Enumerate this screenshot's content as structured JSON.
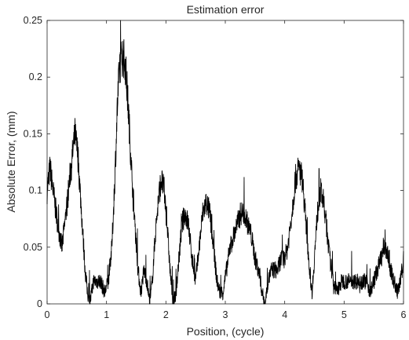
{
  "chart_data": {
    "type": "line",
    "title": "Estimation error",
    "xlabel": "Position, (cycle)",
    "ylabel": "Absolute Error, (mm)",
    "xlim": [
      0,
      6
    ],
    "ylim": [
      0,
      0.25
    ],
    "xticks": [
      "0",
      "1",
      "2",
      "3",
      "4",
      "5",
      "6"
    ],
    "yticks": [
      "0",
      "0.05",
      "0.1",
      "0.15",
      "0.2",
      "0.25"
    ],
    "grid": false,
    "legend": "none",
    "line_color": "#000000",
    "series": [
      {
        "envelope": [
          [
            0.0,
            0.1
          ],
          [
            0.05,
            0.12
          ],
          [
            0.1,
            0.1
          ],
          [
            0.18,
            0.07
          ],
          [
            0.25,
            0.05
          ],
          [
            0.32,
            0.08
          ],
          [
            0.4,
            0.12
          ],
          [
            0.47,
            0.15
          ],
          [
            0.52,
            0.13
          ],
          [
            0.58,
            0.08
          ],
          [
            0.64,
            0.03
          ],
          [
            0.68,
            0.01
          ],
          [
            0.72,
            0.0
          ],
          [
            0.78,
            0.02
          ],
          [
            0.84,
            0.02
          ],
          [
            0.9,
            0.02
          ],
          [
            0.97,
            0.01
          ],
          [
            1.03,
            0.02
          ],
          [
            1.09,
            0.05
          ],
          [
            1.14,
            0.11
          ],
          [
            1.18,
            0.17
          ],
          [
            1.22,
            0.21
          ],
          [
            1.27,
            0.22
          ],
          [
            1.32,
            0.21
          ],
          [
            1.37,
            0.17
          ],
          [
            1.42,
            0.12
          ],
          [
            1.48,
            0.07
          ],
          [
            1.53,
            0.03
          ],
          [
            1.58,
            0.01
          ],
          [
            1.63,
            0.03
          ],
          [
            1.68,
            0.02
          ],
          [
            1.73,
            0.0
          ],
          [
            1.77,
            0.02
          ],
          [
            1.82,
            0.06
          ],
          [
            1.87,
            0.09
          ],
          [
            1.92,
            0.11
          ],
          [
            1.97,
            0.1
          ],
          [
            2.02,
            0.07
          ],
          [
            2.07,
            0.03
          ],
          [
            2.12,
            0.0
          ],
          [
            2.17,
            0.01
          ],
          [
            2.22,
            0.04
          ],
          [
            2.27,
            0.07
          ],
          [
            2.32,
            0.08
          ],
          [
            2.38,
            0.07
          ],
          [
            2.44,
            0.04
          ],
          [
            2.5,
            0.02
          ],
          [
            2.56,
            0.05
          ],
          [
            2.62,
            0.08
          ],
          [
            2.68,
            0.09
          ],
          [
            2.74,
            0.08
          ],
          [
            2.8,
            0.05
          ],
          [
            2.86,
            0.02
          ],
          [
            2.91,
            0.01
          ],
          [
            2.96,
            0.01
          ],
          [
            3.02,
            0.03
          ],
          [
            3.08,
            0.05
          ],
          [
            3.14,
            0.06
          ],
          [
            3.2,
            0.07
          ],
          [
            3.26,
            0.08
          ],
          [
            3.32,
            0.08
          ],
          [
            3.38,
            0.07
          ],
          [
            3.44,
            0.06
          ],
          [
            3.5,
            0.04
          ],
          [
            3.56,
            0.03
          ],
          [
            3.62,
            0.01
          ],
          [
            3.67,
            0.0
          ],
          [
            3.72,
            0.02
          ],
          [
            3.78,
            0.03
          ],
          [
            3.84,
            0.03
          ],
          [
            3.88,
            0.03
          ],
          [
            3.94,
            0.04
          ],
          [
            4.0,
            0.04
          ],
          [
            4.05,
            0.05
          ],
          [
            4.12,
            0.08
          ],
          [
            4.18,
            0.11
          ],
          [
            4.24,
            0.12
          ],
          [
            4.3,
            0.11
          ],
          [
            4.36,
            0.07
          ],
          [
            4.42,
            0.03
          ],
          [
            4.46,
            0.01
          ],
          [
            4.5,
            0.04
          ],
          [
            4.55,
            0.08
          ],
          [
            4.6,
            0.1
          ],
          [
            4.65,
            0.09
          ],
          [
            4.7,
            0.07
          ],
          [
            4.76,
            0.04
          ],
          [
            4.82,
            0.02
          ],
          [
            4.88,
            0.01
          ],
          [
            4.96,
            0.02
          ],
          [
            5.05,
            0.02
          ],
          [
            5.14,
            0.02
          ],
          [
            5.22,
            0.02
          ],
          [
            5.3,
            0.02
          ],
          [
            5.38,
            0.02
          ],
          [
            5.44,
            0.01
          ],
          [
            5.5,
            0.02
          ],
          [
            5.56,
            0.03
          ],
          [
            5.62,
            0.04
          ],
          [
            5.68,
            0.05
          ],
          [
            5.73,
            0.045
          ],
          [
            5.78,
            0.03
          ],
          [
            5.84,
            0.02
          ],
          [
            5.9,
            0.01
          ],
          [
            5.95,
            0.02
          ],
          [
            6.0,
            0.04
          ]
        ]
      }
    ]
  }
}
